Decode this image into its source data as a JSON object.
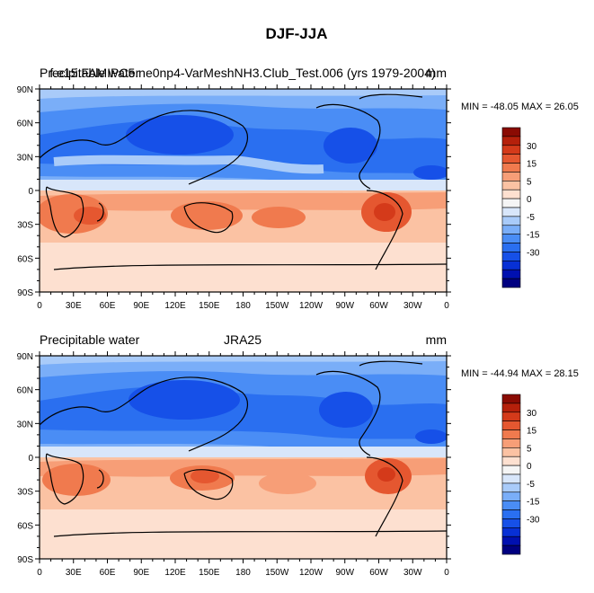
{
  "figure": {
    "title": "DJF-JJA"
  },
  "colorbar": {
    "colors": [
      "#000080",
      "#0010b0",
      "#0730d5",
      "#1650e8",
      "#2a6ff0",
      "#4a8df5",
      "#7aaef8",
      "#a9cbf9",
      "#d8e6fa",
      "#f5f5f5",
      "#fde0d0",
      "#fbc2a3",
      "#f79e77",
      "#f07a4e",
      "#e55730",
      "#d43a1a",
      "#b5200b",
      "#8a0b03"
    ],
    "labels": [
      {
        "text": "30",
        "slot": 1
      },
      {
        "text": "15",
        "slot": 3
      },
      {
        "text": "5",
        "slot": 5
      },
      {
        "text": "0",
        "slot": 7
      },
      {
        "text": "-5",
        "slot": 9
      },
      {
        "text": "-15",
        "slot": 11
      },
      {
        "text": "-30",
        "slot": 13
      }
    ]
  },
  "axes": {
    "lat_ticks": [
      "90N",
      "60N",
      "30N",
      "0",
      "30S",
      "60S",
      "90S"
    ],
    "lon_ticks": [
      "0",
      "30E",
      "60E",
      "90E",
      "120E",
      "150E",
      "180",
      "150W",
      "120W",
      "90W",
      "60W",
      "30W",
      "0"
    ]
  },
  "chart_data": [
    {
      "type": "heatmap",
      "name": "model",
      "left_title": "Precipitable water",
      "center_title": "f.e15.FAMIPC5.ne0np4-VarMeshNH3.Club_Test.006 (yrs 1979-2004)",
      "units": "mm",
      "min_max": "MIN = -48.05 MAX =  26.05",
      "min": -48.05,
      "max": 26.05,
      "xlim": [
        0,
        360
      ],
      "ylim": [
        -90,
        90
      ],
      "variable": "precipitable water difference DJF minus JJA"
    },
    {
      "type": "heatmap",
      "name": "obs",
      "left_title": "Precipitable water",
      "center_title": "JRA25",
      "units": "mm",
      "min_max": "MIN = -44.94 MAX =  28.15",
      "min": -44.94,
      "max": 28.15,
      "xlim": [
        0,
        360
      ],
      "ylim": [
        -90,
        90
      ],
      "variable": "precipitable water difference DJF minus JJA"
    }
  ]
}
